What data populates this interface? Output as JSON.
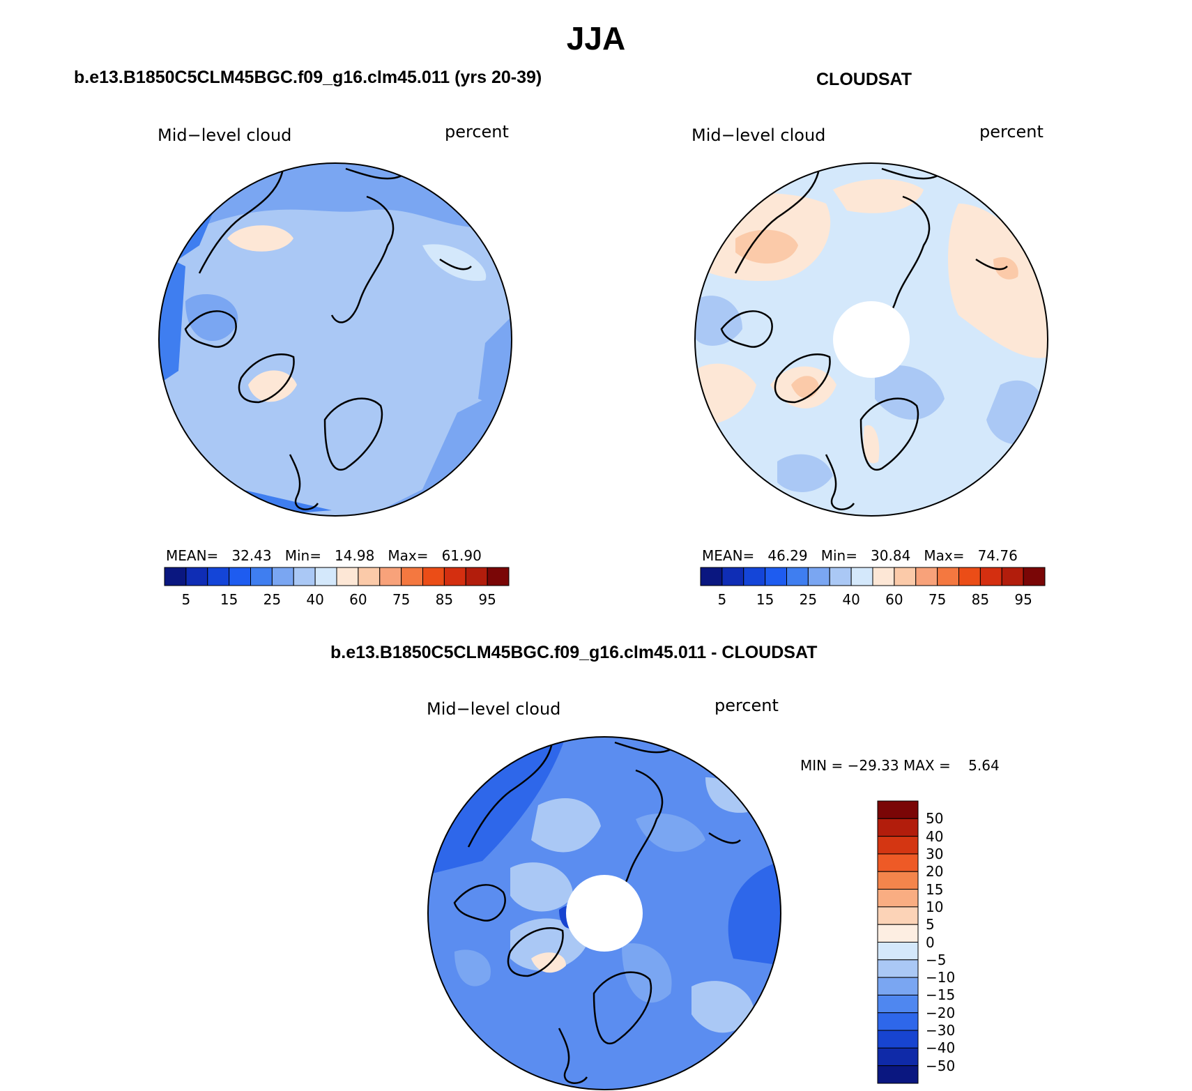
{
  "title": "JJA",
  "panels": [
    {
      "case_title": "b.e13.B1850C5CLM45BGC.f09_g16.clm45.011 (yrs 20-39)",
      "field_label": "Mid−level cloud",
      "units_label": "percent",
      "stats": {
        "mean_label": "MEAN=",
        "mean": "32.43",
        "min_label": "Min=",
        "min": "14.98",
        "max_label": "Max=",
        "max": "61.90"
      },
      "base_color": "#aac8f5",
      "has_pole_hole": false
    },
    {
      "case_title": "CLOUDSAT",
      "field_label": "Mid−level cloud",
      "units_label": "percent",
      "stats": {
        "mean_label": "MEAN=",
        "mean": "46.29",
        "min_label": "Min=",
        "min": "30.84",
        "max_label": "Max=",
        "max": "74.76"
      },
      "base_color": "#d4e8fb",
      "has_pole_hole": true
    }
  ],
  "abs_colorbar": {
    "colors": [
      "#0a1780",
      "#0f2db5",
      "#1445d8",
      "#1e5cf0",
      "#3f7ef0",
      "#7aa6f2",
      "#aac8f5",
      "#d4e8fb",
      "#fde7d6",
      "#fbcaa9",
      "#f8a27a",
      "#f47840",
      "#eb4d17",
      "#d42f10",
      "#b21d0c",
      "#7a0606"
    ],
    "tick_labels": [
      "5",
      "15",
      "25",
      "40",
      "60",
      "75",
      "85",
      "95"
    ]
  },
  "diff_panel": {
    "case_title": "b.e13.B1850C5CLM45BGC.f09_g16.clm45.011 - CLOUDSAT",
    "field_label": "Mid−level cloud",
    "units_label": "percent",
    "minmax": "MIN = −29.33 MAX =    5.64",
    "base_color": "#5b8df0",
    "has_pole_hole": true
  },
  "diff_colorbar": {
    "colors_top_to_bottom": [
      "#7a0606",
      "#b21d0c",
      "#d43612",
      "#ee5a26",
      "#f4854c",
      "#f9ad82",
      "#fcd3b7",
      "#fdeee2",
      "#d4e8fb",
      "#aac8f5",
      "#7aa6f2",
      "#4f87f0",
      "#2e67ea",
      "#1744d0",
      "#0f2aa8",
      "#0a1780"
    ],
    "tick_labels": [
      "50",
      "40",
      "30",
      "20",
      "15",
      "10",
      "5",
      "0",
      "−5",
      "−10",
      "−15",
      "−20",
      "−30",
      "−40",
      "−50"
    ]
  }
}
